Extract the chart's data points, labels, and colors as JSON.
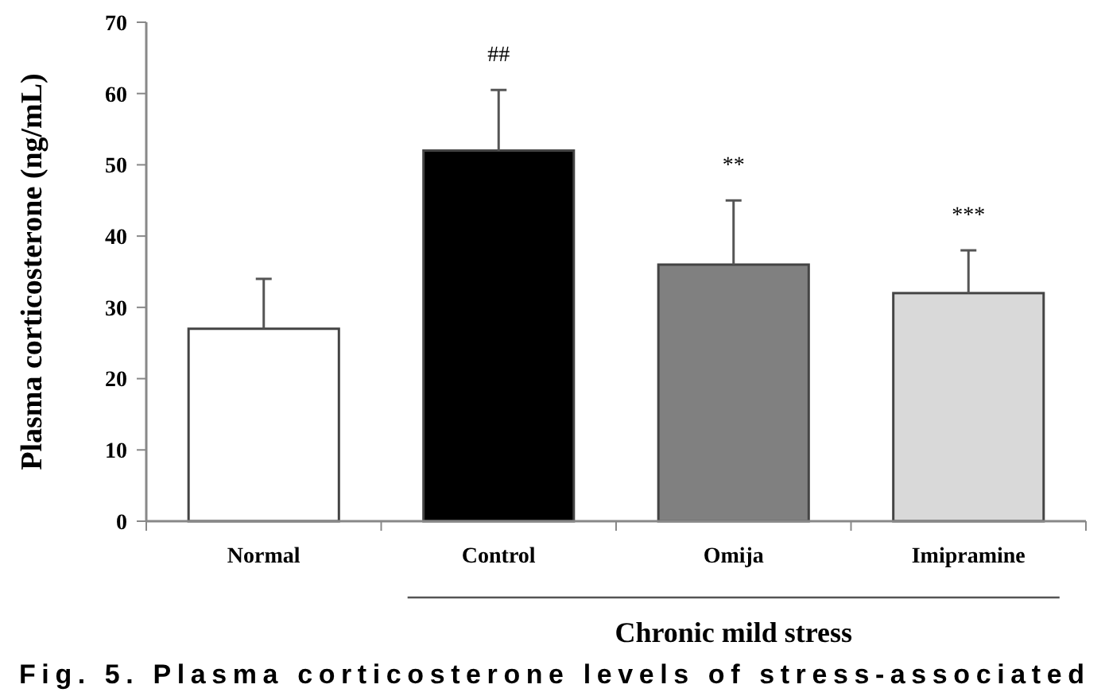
{
  "chart_data": {
    "type": "bar",
    "ylabel": "Plasma corticosterone (ng/mL)",
    "categories": [
      "Normal",
      "Control",
      "Omija",
      "Imipramine"
    ],
    "values": [
      27,
      52,
      36,
      32
    ],
    "errors": [
      7,
      8.5,
      9,
      6
    ],
    "colors": [
      "#ffffff",
      "#000000",
      "#808080",
      "#d9d9d9"
    ],
    "ylim": [
      0,
      70
    ],
    "yticks": [
      0,
      10,
      20,
      30,
      40,
      50,
      60,
      70
    ],
    "grid": false,
    "annotations": [
      {
        "text": "##",
        "x": "Control",
        "y": 60.5
      },
      {
        "text": "**",
        "x": "Omija",
        "y": 45
      },
      {
        "text": "***",
        "x": "Imipramine",
        "y": 38
      },
      "Chronic mild stress",
      "Fig. 5. Plasma corticosterone levels of stress-associated"
    ]
  }
}
